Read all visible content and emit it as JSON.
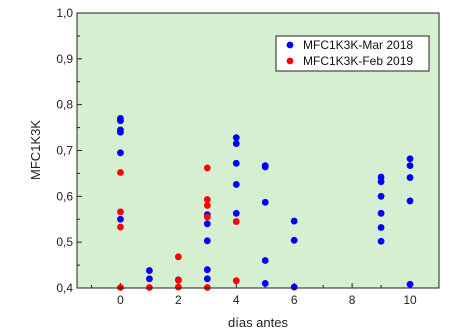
{
  "chart_data": {
    "type": "scatter",
    "xlabel": "días antes",
    "ylabel": "MFC1K3K",
    "xlim": [
      -1.5,
      11
    ],
    "ylim": [
      0.4,
      1.0
    ],
    "xticks": [
      "0",
      "2",
      "4",
      "6",
      "8",
      "10"
    ],
    "yticks": [
      "0,4",
      "0,5",
      "0,6",
      "0,7",
      "0,8",
      "0,9",
      "1,0"
    ],
    "plot_background": "#d7efd1",
    "legend_position": "top-right",
    "series": [
      {
        "name": "MFC1K3K-Mar 2018",
        "color": "#0000ff",
        "points": [
          {
            "x": 0,
            "y": 0.77
          },
          {
            "x": 0,
            "y": 0.765
          },
          {
            "x": 0,
            "y": 0.745
          },
          {
            "x": 0,
            "y": 0.74
          },
          {
            "x": 0,
            "y": 0.695
          },
          {
            "x": 0,
            "y": 0.55
          },
          {
            "x": 1,
            "y": 0.438
          },
          {
            "x": 1,
            "y": 0.42
          },
          {
            "x": 2,
            "y": 0.418
          },
          {
            "x": 3,
            "y": 0.56
          },
          {
            "x": 3,
            "y": 0.54
          },
          {
            "x": 3,
            "y": 0.503
          },
          {
            "x": 3,
            "y": 0.44
          },
          {
            "x": 3,
            "y": 0.42
          },
          {
            "x": 4,
            "y": 0.728
          },
          {
            "x": 4,
            "y": 0.715
          },
          {
            "x": 4,
            "y": 0.672
          },
          {
            "x": 4,
            "y": 0.626
          },
          {
            "x": 4,
            "y": 0.563
          },
          {
            "x": 5,
            "y": 0.667
          },
          {
            "x": 5,
            "y": 0.664
          },
          {
            "x": 5,
            "y": 0.587
          },
          {
            "x": 5,
            "y": 0.46
          },
          {
            "x": 5,
            "y": 0.41
          },
          {
            "x": 6,
            "y": 0.546
          },
          {
            "x": 6,
            "y": 0.504
          },
          {
            "x": 6,
            "y": 0.402
          },
          {
            "x": 9,
            "y": 0.642
          },
          {
            "x": 9,
            "y": 0.632
          },
          {
            "x": 9,
            "y": 0.6
          },
          {
            "x": 9,
            "y": 0.563
          },
          {
            "x": 9,
            "y": 0.532
          },
          {
            "x": 9,
            "y": 0.502
          },
          {
            "x": 10,
            "y": 0.682
          },
          {
            "x": 10,
            "y": 0.667
          },
          {
            "x": 10,
            "y": 0.641
          },
          {
            "x": 10,
            "y": 0.59
          },
          {
            "x": 10,
            "y": 0.408
          }
        ]
      },
      {
        "name": "MFC1K3K-Feb 2019",
        "color": "#ff0000",
        "points": [
          {
            "x": 0,
            "y": 0.652
          },
          {
            "x": 0,
            "y": 0.566
          },
          {
            "x": 0,
            "y": 0.533
          },
          {
            "x": 0,
            "y": 0.4
          },
          {
            "x": 1,
            "y": 0.4
          },
          {
            "x": 2,
            "y": 0.468
          },
          {
            "x": 2,
            "y": 0.417
          },
          {
            "x": 2,
            "y": 0.402
          },
          {
            "x": 3,
            "y": 0.662
          },
          {
            "x": 3,
            "y": 0.593
          },
          {
            "x": 3,
            "y": 0.58
          },
          {
            "x": 3,
            "y": 0.555
          },
          {
            "x": 3,
            "y": 0.4
          },
          {
            "x": 4,
            "y": 0.545
          },
          {
            "x": 4,
            "y": 0.416
          }
        ]
      }
    ]
  }
}
